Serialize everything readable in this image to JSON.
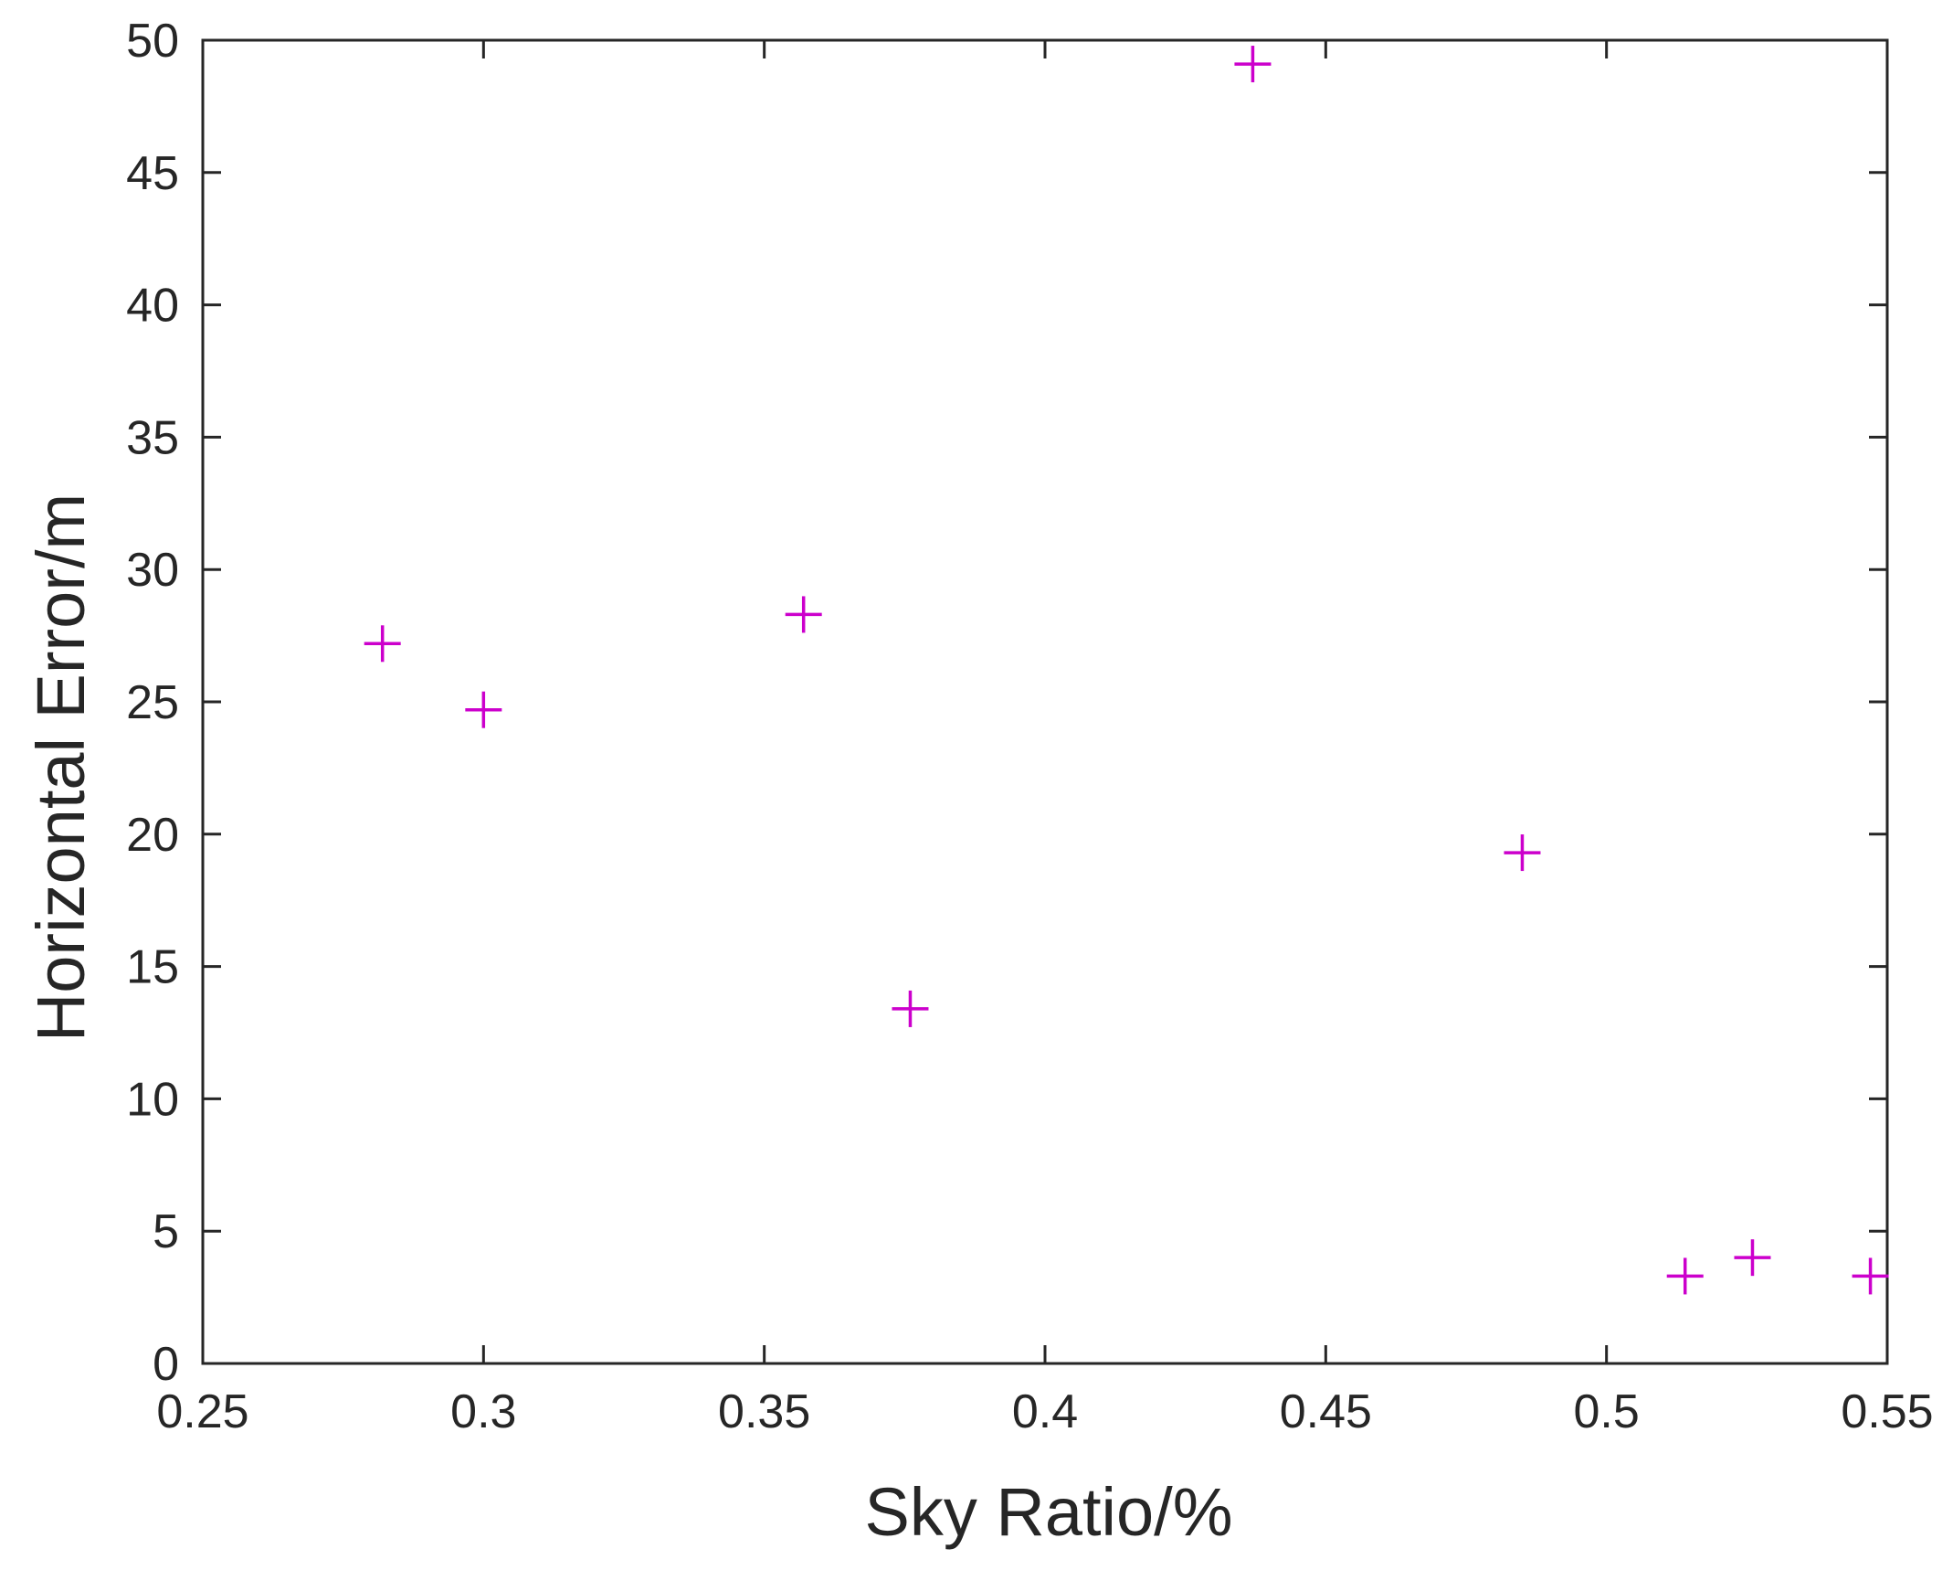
{
  "chart_data": {
    "type": "scatter",
    "title": "",
    "xlabel": "Sky Ratio/%",
    "ylabel": "Horizontal Error/m",
    "xlim": [
      0.25,
      0.55
    ],
    "ylim": [
      0,
      50
    ],
    "x_ticks": [
      0.25,
      0.3,
      0.35,
      0.4,
      0.45,
      0.5,
      0.55
    ],
    "x_tick_labels": [
      "0.25",
      "0.3",
      "0.35",
      "0.4",
      "0.45",
      "0.5",
      "0.55"
    ],
    "y_ticks": [
      0,
      5,
      10,
      15,
      20,
      25,
      30,
      35,
      40,
      45,
      50
    ],
    "y_tick_labels": [
      "0",
      "5",
      "10",
      "15",
      "20",
      "25",
      "30",
      "35",
      "40",
      "45",
      "50"
    ],
    "grid": false,
    "box": true,
    "marker": "+",
    "marker_color": "#cc00cc",
    "axis_color": "#262626",
    "series": [
      {
        "x": [
          0.282,
          0.3,
          0.357,
          0.376,
          0.437,
          0.485,
          0.514,
          0.526,
          0.547
        ],
        "y": [
          27.2,
          24.7,
          28.3,
          13.4,
          49.1,
          19.3,
          3.3,
          4.0,
          3.3
        ]
      }
    ]
  }
}
